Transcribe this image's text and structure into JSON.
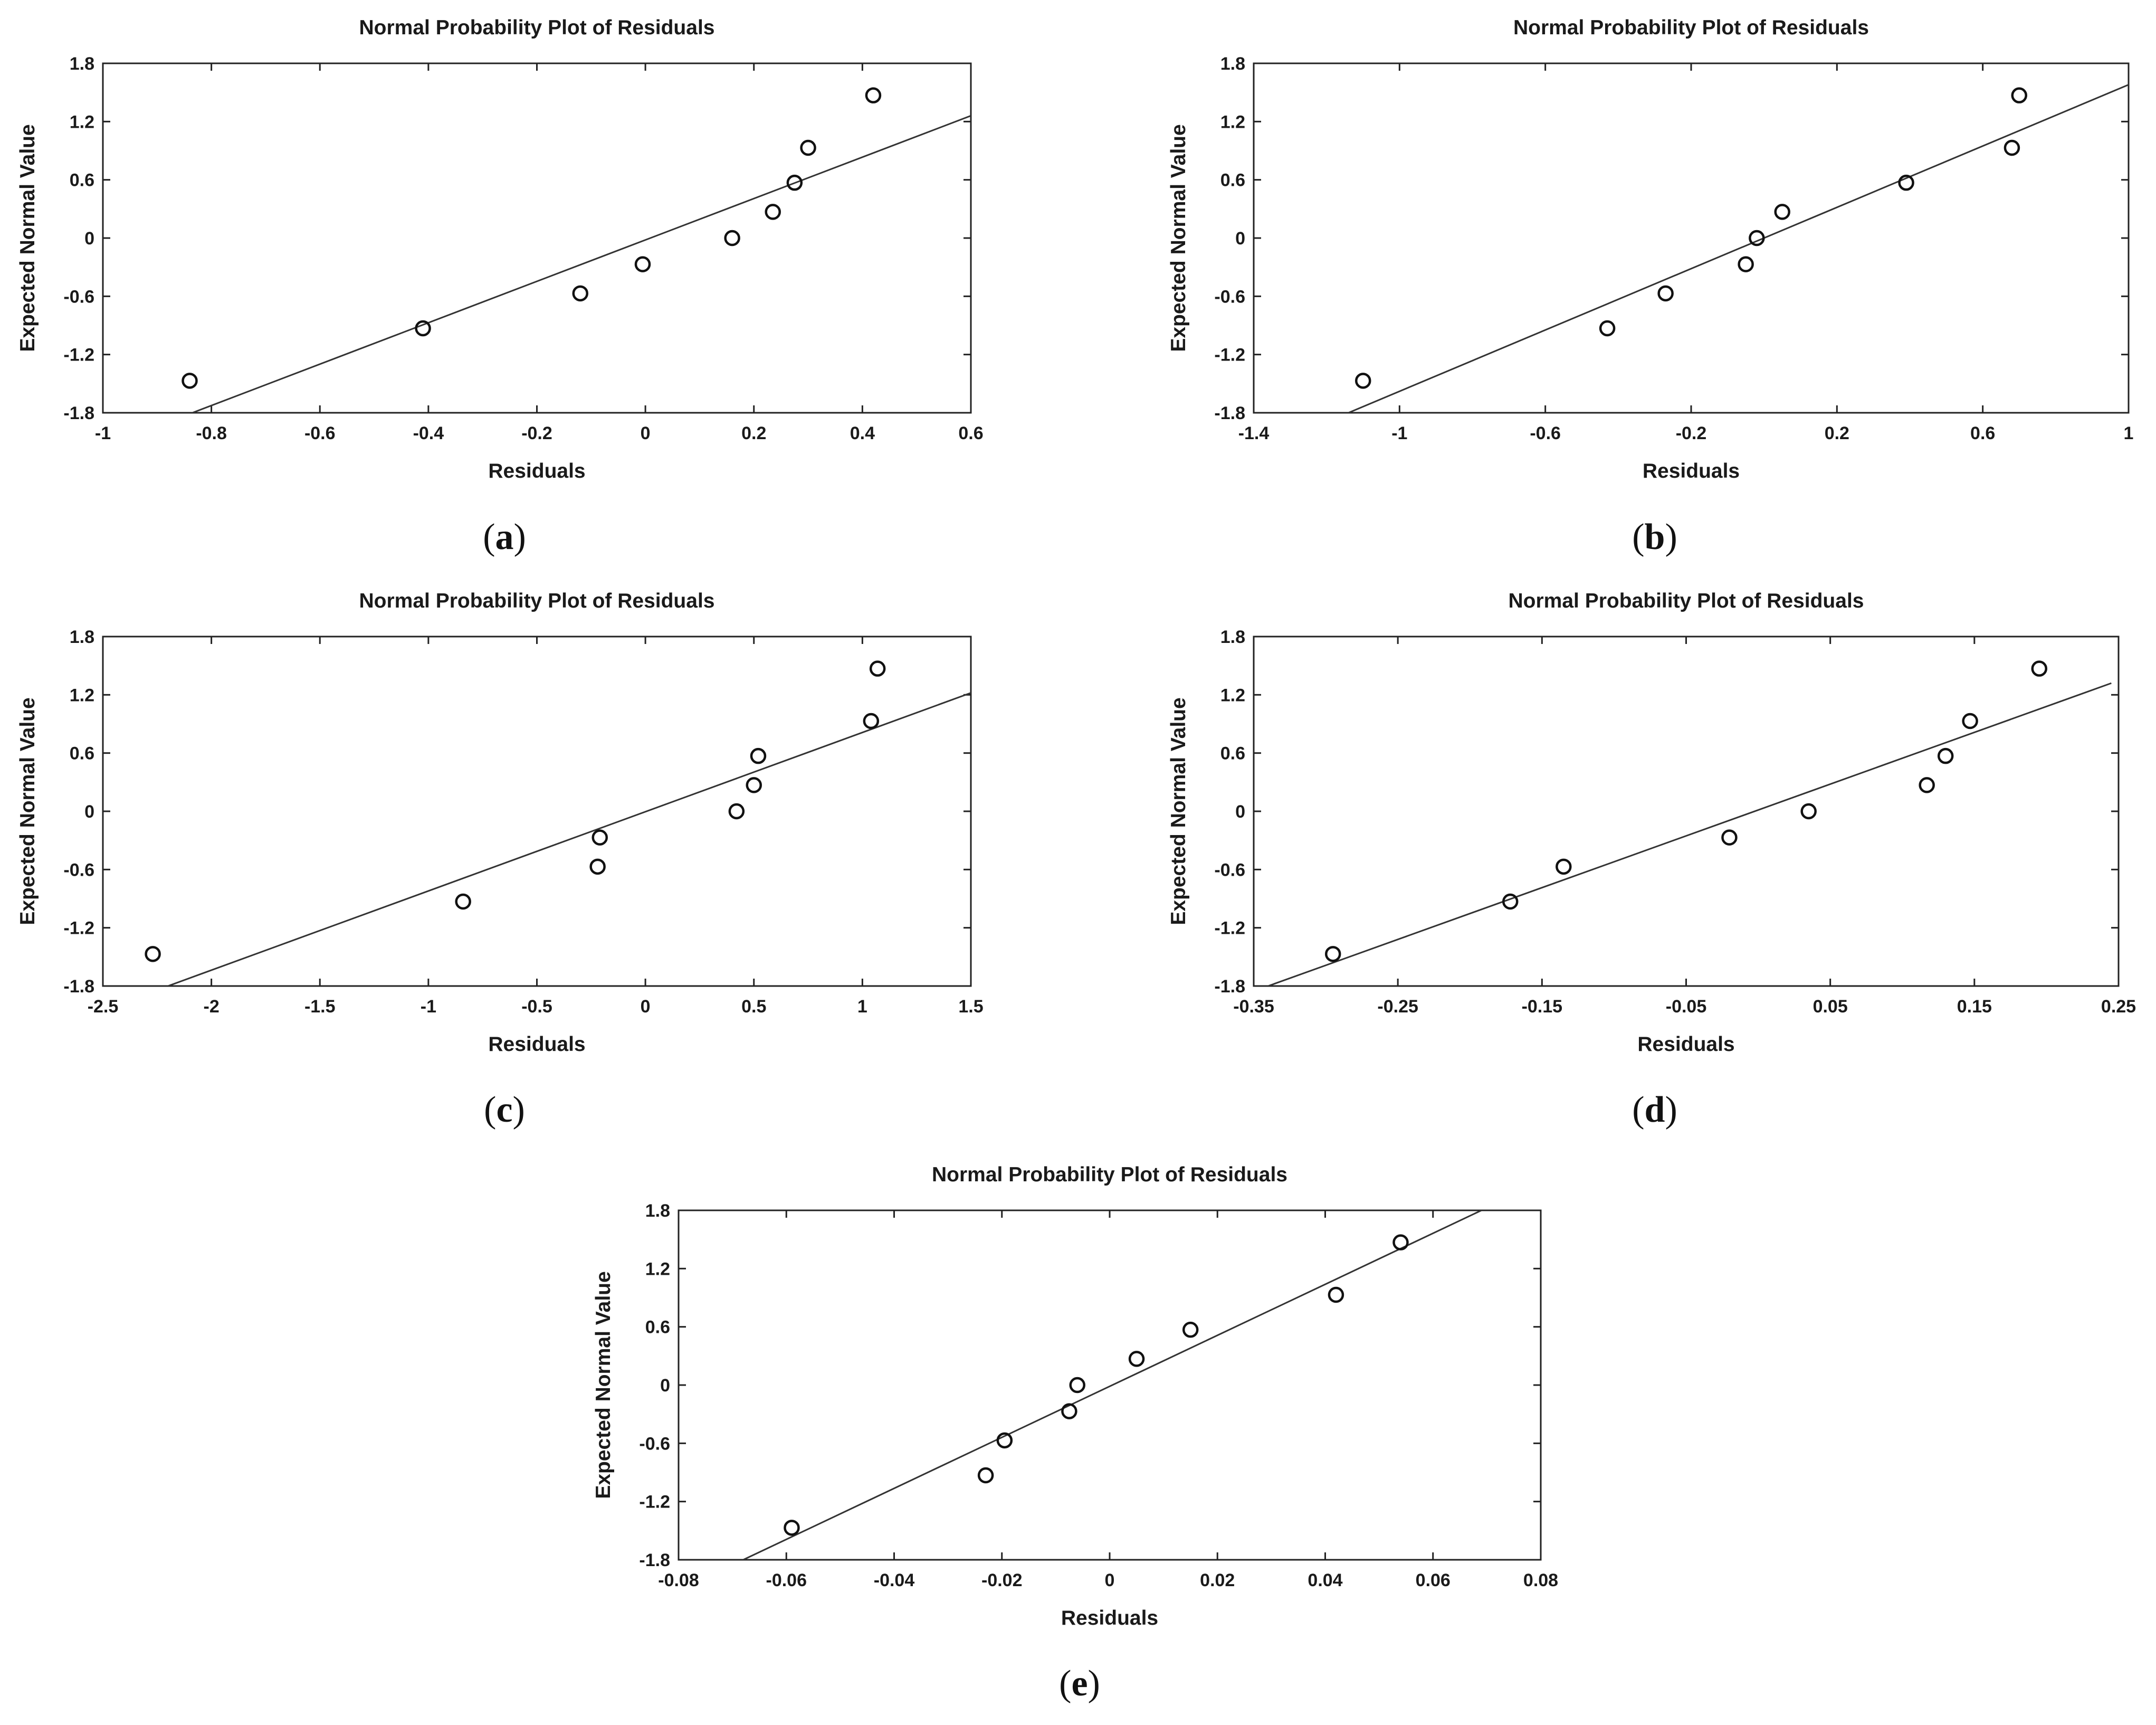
{
  "chart_data": [
    {
      "type": "scatter",
      "panel": "a",
      "title": "Normal Probability Plot of Residuals",
      "xlabel": "Residuals",
      "ylabel": "Expected Normal Value",
      "xlim": [
        -1,
        0.6
      ],
      "ylim": [
        -1.8,
        1.8
      ],
      "xticks": [
        -1,
        -0.8,
        -0.6,
        -0.4,
        -0.2,
        0,
        0.2,
        0.4,
        0.6
      ],
      "yticks": [
        -1.8,
        -1.2,
        -0.6,
        0,
        0.6,
        1.2,
        1.8
      ],
      "points": [
        {
          "x": -0.84,
          "y": -1.47
        },
        {
          "x": -0.41,
          "y": -0.93
        },
        {
          "x": -0.12,
          "y": -0.57
        },
        {
          "x": -0.005,
          "y": -0.27
        },
        {
          "x": 0.16,
          "y": 0.0
        },
        {
          "x": 0.235,
          "y": 0.27
        },
        {
          "x": 0.275,
          "y": 0.57
        },
        {
          "x": 0.3,
          "y": 0.93
        },
        {
          "x": 0.42,
          "y": 1.47
        }
      ],
      "fit_line": {
        "x1": -0.835,
        "y1": -1.8,
        "x2": 0.6,
        "y2": 1.26
      }
    },
    {
      "type": "scatter",
      "panel": "b",
      "title": "Normal Probability Plot of Residuals",
      "xlabel": "Residuals",
      "ylabel": "Expected Normal Value",
      "xlim": [
        -1.4,
        1
      ],
      "ylim": [
        -1.8,
        1.8
      ],
      "xticks": [
        -1.4,
        -1,
        -0.6,
        -0.2,
        0.2,
        0.6,
        1
      ],
      "yticks": [
        -1.8,
        -1.2,
        -0.6,
        0,
        0.6,
        1.2,
        1.8
      ],
      "points": [
        {
          "x": -1.1,
          "y": -1.47
        },
        {
          "x": -0.43,
          "y": -0.93
        },
        {
          "x": -0.27,
          "y": -0.57
        },
        {
          "x": -0.05,
          "y": -0.27
        },
        {
          "x": -0.02,
          "y": 0.0
        },
        {
          "x": 0.05,
          "y": 0.27
        },
        {
          "x": 0.39,
          "y": 0.57
        },
        {
          "x": 0.68,
          "y": 0.93
        },
        {
          "x": 0.7,
          "y": 1.47
        }
      ],
      "fit_line": {
        "x1": -1.14,
        "y1": -1.8,
        "x2": 1.0,
        "y2": 1.58
      }
    },
    {
      "type": "scatter",
      "panel": "c",
      "title": "Normal Probability Plot of Residuals",
      "xlabel": "Residuals",
      "ylabel": "Expected Normal Value",
      "xlim": [
        -2.5,
        1.5
      ],
      "ylim": [
        -1.8,
        1.8
      ],
      "xticks": [
        -2.5,
        -2,
        -1.5,
        -1,
        -0.5,
        0,
        0.5,
        1,
        1.5
      ],
      "yticks": [
        -1.8,
        -1.2,
        -0.6,
        0,
        0.6,
        1.2,
        1.8
      ],
      "points": [
        {
          "x": -2.27,
          "y": -1.47
        },
        {
          "x": -0.84,
          "y": -0.93
        },
        {
          "x": -0.22,
          "y": -0.57
        },
        {
          "x": -0.21,
          "y": -0.27
        },
        {
          "x": 0.42,
          "y": 0.0
        },
        {
          "x": 0.5,
          "y": 0.27
        },
        {
          "x": 0.52,
          "y": 0.57
        },
        {
          "x": 1.04,
          "y": 0.93
        },
        {
          "x": 1.07,
          "y": 1.47
        }
      ],
      "fit_line": {
        "x1": -2.2,
        "y1": -1.8,
        "x2": 1.5,
        "y2": 1.22
      }
    },
    {
      "type": "scatter",
      "panel": "d",
      "title": "Normal Probability Plot of Residuals",
      "xlabel": "Residuals",
      "ylabel": "Expected Normal Value",
      "xlim": [
        -0.35,
        0.25
      ],
      "ylim": [
        -1.8,
        1.8
      ],
      "xticks": [
        -0.35,
        -0.25,
        -0.15,
        -0.05,
        0.05,
        0.15,
        0.25
      ],
      "yticks": [
        -1.8,
        -1.2,
        -0.6,
        0,
        0.6,
        1.2,
        1.8
      ],
      "points": [
        {
          "x": -0.295,
          "y": -1.47
        },
        {
          "x": -0.172,
          "y": -0.93
        },
        {
          "x": -0.135,
          "y": -0.57
        },
        {
          "x": -0.02,
          "y": -0.27
        },
        {
          "x": 0.035,
          "y": 0.0
        },
        {
          "x": 0.117,
          "y": 0.27
        },
        {
          "x": 0.13,
          "y": 0.57
        },
        {
          "x": 0.147,
          "y": 0.93
        },
        {
          "x": 0.195,
          "y": 1.47
        }
      ],
      "fit_line": {
        "x1": -0.34,
        "y1": -1.8,
        "x2": 0.245,
        "y2": 1.32
      }
    },
    {
      "type": "scatter",
      "panel": "e",
      "title": "Normal Probability Plot of Residuals",
      "xlabel": "Residuals",
      "ylabel": "Expected Normal Value",
      "xlim": [
        -0.08,
        0.08
      ],
      "ylim": [
        -1.8,
        1.8
      ],
      "xticks": [
        -0.08,
        -0.06,
        -0.04,
        -0.02,
        0,
        0.02,
        0.04,
        0.06,
        0.08
      ],
      "yticks": [
        -1.8,
        -1.2,
        -0.6,
        0,
        0.6,
        1.2,
        1.8
      ],
      "points": [
        {
          "x": -0.059,
          "y": -1.47
        },
        {
          "x": -0.023,
          "y": -0.93
        },
        {
          "x": -0.0195,
          "y": -0.57
        },
        {
          "x": -0.0075,
          "y": -0.27
        },
        {
          "x": -0.006,
          "y": 0.0
        },
        {
          "x": 0.005,
          "y": 0.27
        },
        {
          "x": 0.015,
          "y": 0.57
        },
        {
          "x": 0.042,
          "y": 0.93
        },
        {
          "x": 0.054,
          "y": 1.47
        }
      ],
      "fit_line": {
        "x1": -0.068,
        "y1": -1.8,
        "x2": 0.069,
        "y2": 1.8
      }
    }
  ],
  "panel_labels": {
    "a": {
      "open": "(",
      "letter": "a",
      "close": ")"
    },
    "b": {
      "open": "(",
      "letter": "b",
      "close": ")"
    },
    "c": {
      "open": "(",
      "letter": "c",
      "close": ")"
    },
    "d": {
      "open": "(",
      "letter": "d",
      "close": ")"
    },
    "e": {
      "open": "(",
      "letter": "e",
      "close": ")"
    }
  }
}
